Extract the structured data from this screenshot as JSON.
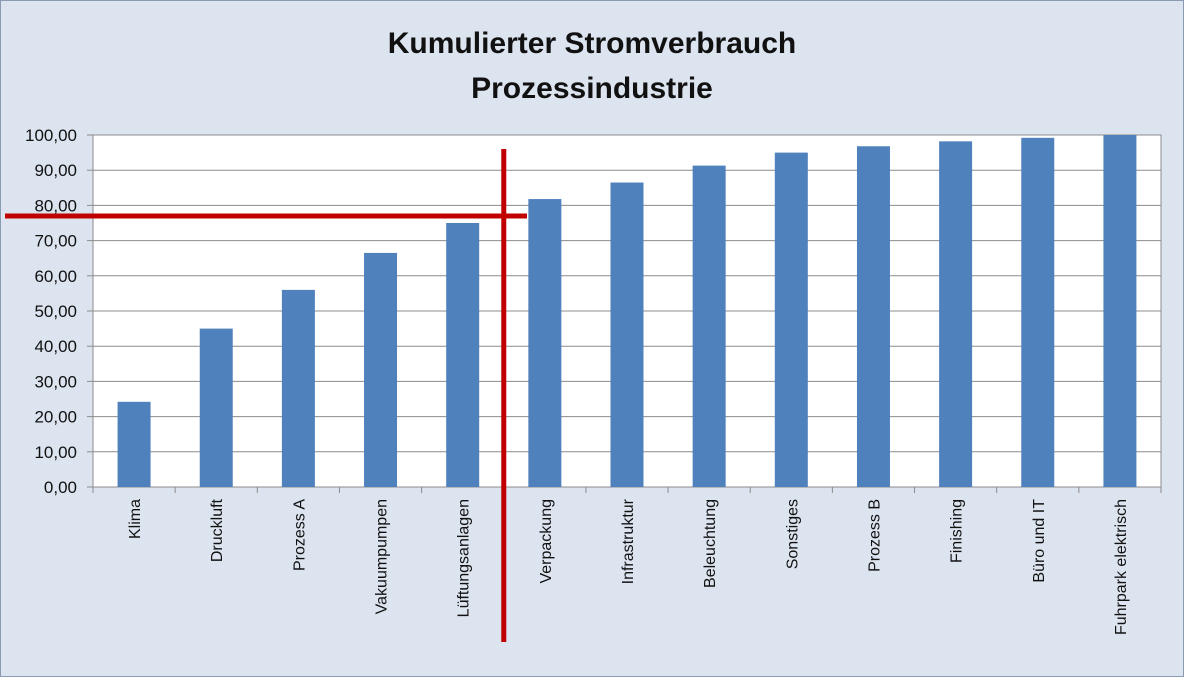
{
  "chart_data": {
    "type": "bar",
    "title": [
      "Kumulierter Stromverbrauch",
      "Prozessindustrie"
    ],
    "xlabel": "",
    "ylabel": "",
    "categories": [
      "Klima",
      "Druckluft",
      "Prozess A",
      "Vakuumpumpen",
      "Lüftungsanlagen",
      "Verpackung",
      "Infrastruktur",
      "Beleuchtung",
      "Sonstiges",
      "Prozess B",
      "Finishing",
      "Büro und IT",
      "Fuhrpark elektrisch"
    ],
    "values": [
      24.2,
      45.0,
      56.0,
      66.5,
      75.0,
      81.8,
      86.5,
      91.3,
      95.0,
      96.8,
      98.2,
      99.2,
      100.0
    ],
    "ylim": [
      0,
      100
    ],
    "yticks": [
      "0,00",
      "10,00",
      "20,00",
      "30,00",
      "40,00",
      "50,00",
      "60,00",
      "70,00",
      "80,00",
      "90,00",
      "100,00"
    ],
    "grid": true,
    "legend": "none",
    "annotations": {
      "horizontal_line_y": 77,
      "vertical_line_between": [
        "Lüftungsanlagen",
        "Verpackung"
      ],
      "line_color": "#c00000"
    },
    "colors": {
      "bar": "#4f81bd",
      "plot_bg": "#ffffff",
      "page_bg": "#dce4ef",
      "grid": "#8c8c8c"
    }
  }
}
